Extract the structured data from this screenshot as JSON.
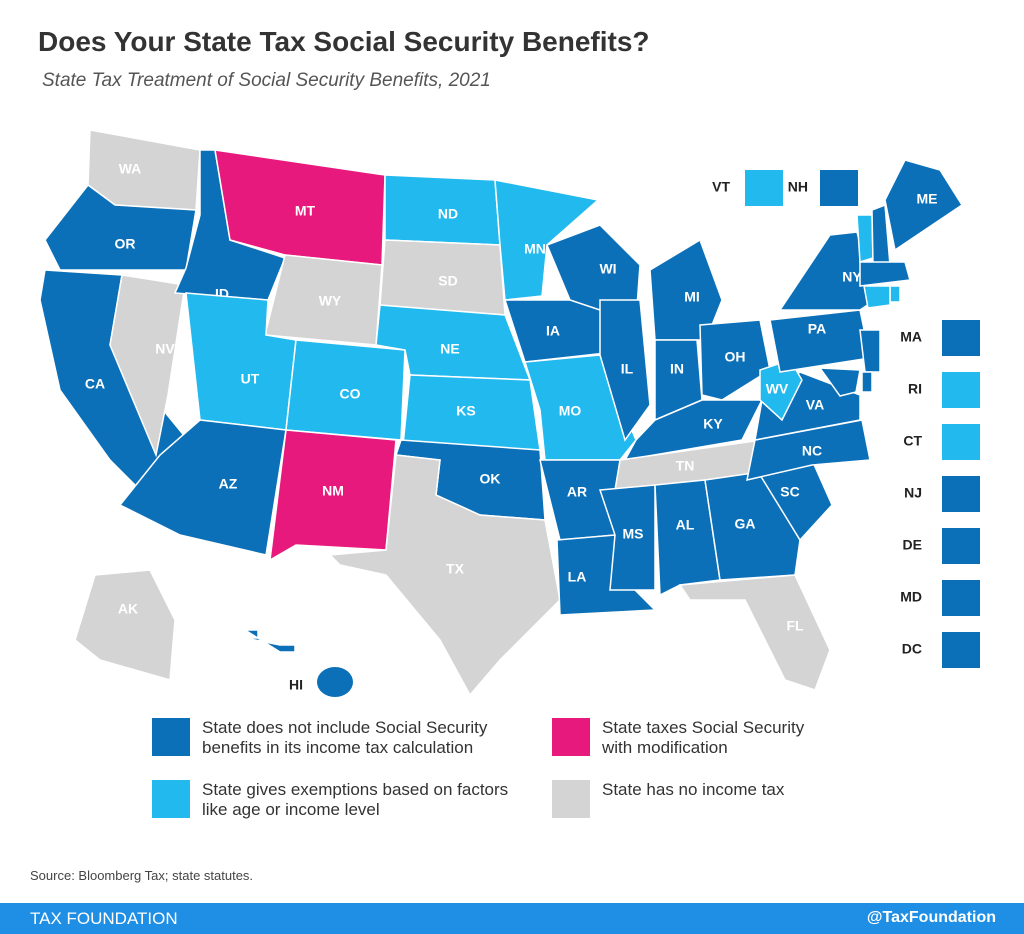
{
  "header": {
    "title": "Does Your State Tax Social Security Benefits?",
    "subtitle": "State Tax Treatment of Social Security Benefits, 2021"
  },
  "map": {
    "legend": [
      {
        "color": "#0b70b8",
        "label": "State does not include Social Security benefits in its income tax calculation"
      },
      {
        "color": "#e8197d",
        "label": "State taxes Social Security with modification"
      },
      {
        "color": "#22b9ee",
        "label": "State gives exemptions based on factors like age or income level"
      },
      {
        "color": "#d4d4d4",
        "label": "State has no income tax"
      }
    ],
    "states": [
      {
        "abbr": "WA",
        "category": 3
      },
      {
        "abbr": "OR",
        "category": 0
      },
      {
        "abbr": "CA",
        "category": 0
      },
      {
        "abbr": "NV",
        "category": 3
      },
      {
        "abbr": "ID",
        "category": 0
      },
      {
        "abbr": "MT",
        "category": 1
      },
      {
        "abbr": "WY",
        "category": 3
      },
      {
        "abbr": "UT",
        "category": 2
      },
      {
        "abbr": "CO",
        "category": 2
      },
      {
        "abbr": "AZ",
        "category": 0
      },
      {
        "abbr": "NM",
        "category": 1
      },
      {
        "abbr": "ND",
        "category": 2
      },
      {
        "abbr": "SD",
        "category": 3
      },
      {
        "abbr": "NE",
        "category": 2
      },
      {
        "abbr": "KS",
        "category": 2
      },
      {
        "abbr": "OK",
        "category": 0
      },
      {
        "abbr": "TX",
        "category": 3
      },
      {
        "abbr": "MN",
        "category": 2
      },
      {
        "abbr": "IA",
        "category": 0
      },
      {
        "abbr": "MO",
        "category": 2
      },
      {
        "abbr": "AR",
        "category": 0
      },
      {
        "abbr": "LA",
        "category": 0
      },
      {
        "abbr": "WI",
        "category": 0
      },
      {
        "abbr": "IL",
        "category": 0
      },
      {
        "abbr": "MI",
        "category": 0
      },
      {
        "abbr": "IN",
        "category": 0
      },
      {
        "abbr": "OH",
        "category": 0
      },
      {
        "abbr": "KY",
        "category": 0
      },
      {
        "abbr": "TN",
        "category": 3
      },
      {
        "abbr": "MS",
        "category": 0
      },
      {
        "abbr": "AL",
        "category": 0
      },
      {
        "abbr": "GA",
        "category": 0
      },
      {
        "abbr": "FL",
        "category": 3
      },
      {
        "abbr": "SC",
        "category": 0
      },
      {
        "abbr": "NC",
        "category": 0
      },
      {
        "abbr": "VA",
        "category": 0
      },
      {
        "abbr": "WV",
        "category": 2
      },
      {
        "abbr": "PA",
        "category": 0
      },
      {
        "abbr": "NY",
        "category": 0
      },
      {
        "abbr": "VT",
        "category": 2
      },
      {
        "abbr": "NH",
        "category": 0
      },
      {
        "abbr": "ME",
        "category": 0
      },
      {
        "abbr": "MA",
        "category": 0
      },
      {
        "abbr": "RI",
        "category": 2
      },
      {
        "abbr": "CT",
        "category": 2
      },
      {
        "abbr": "NJ",
        "category": 0
      },
      {
        "abbr": "DE",
        "category": 0
      },
      {
        "abbr": "MD",
        "category": 0
      },
      {
        "abbr": "DC",
        "category": 0
      },
      {
        "abbr": "AK",
        "category": 3
      },
      {
        "abbr": "HI",
        "category": 0
      }
    ]
  },
  "source": "Source: Bloomberg Tax; state statutes.",
  "footer": {
    "brand": "TAX FOUNDATION",
    "handle": "@TaxFoundation"
  }
}
